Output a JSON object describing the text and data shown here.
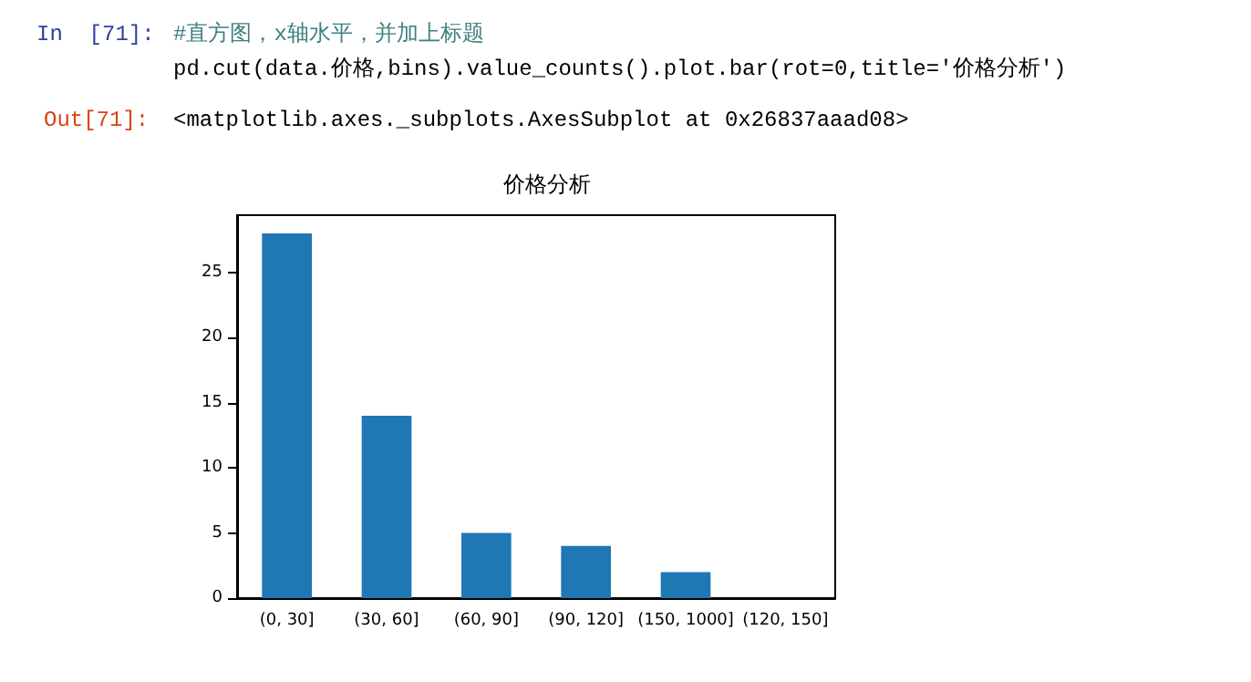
{
  "chart_data": {
    "type": "bar",
    "title": "价格分析",
    "categories": [
      "(0, 30]",
      "(30, 60]",
      "(60, 90]",
      "(90, 120]",
      "(150, 1000]",
      "(120, 150]"
    ],
    "values": [
      28,
      14,
      5,
      4,
      2,
      0
    ],
    "color": "#1f77b4",
    "ylim": [
      0,
      29.4
    ],
    "yticks": [
      0,
      5,
      10,
      15,
      20,
      25
    ],
    "grid": false,
    "annotations": [
      "In  [71]:",
      "#直方图，x轴水平，并加上标题",
      "pd.cut(data.价格,bins).value_counts().plot.bar(rot=0,title='价格分析')",
      "Out[71]:",
      "<matplotlib.axes._subplots.AxesSubplot at 0x26837aaad08>"
    ]
  }
}
